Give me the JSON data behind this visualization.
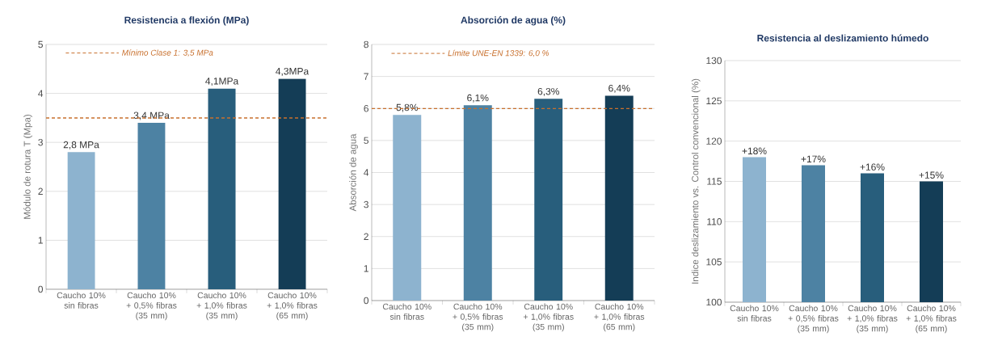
{
  "chart_data": [
    {
      "type": "bar",
      "title": "Resistencia a flexión (MPa)",
      "ylabel": "Módulo de rotura T (Mpa)",
      "categories": [
        "Caucho 10% sin fibras",
        "Caucho 10% + 0,5% fibras (35 mm)",
        "Caucho 10% + 1,0% fibras (35 mm)",
        "Caucho 10% + 1,0% fibras (65 mm)"
      ],
      "values": [
        2.8,
        3.4,
        4.1,
        4.3
      ],
      "colors": [
        "#8db3cf",
        "#4d82a3",
        "#285e7c",
        "#143d56"
      ],
      "value_labels": [
        "2,8 MPa",
        "3,4 MPa",
        "4,1MPa",
        "4,3MPa"
      ],
      "ylim": [
        0,
        5
      ],
      "yticks": [
        0,
        1,
        2,
        3,
        4,
        5
      ],
      "grid": "y",
      "ref_lines": [
        {
          "axis": "y",
          "value": 3.5,
          "label": "Mínimo Clase 1: 3,5 MPa",
          "color": "#c8702e",
          "line_style": "dashed"
        }
      ]
    },
    {
      "type": "bar",
      "title": "Absorción de agua (%)",
      "ylabel": "Absorción de agua",
      "categories": [
        "Caucho 10% sin fibras",
        "Caucho 10% + 0,5% fibras (35 mm)",
        "Caucho 10% + 1,0% fibras (35 mm)",
        "Caucho 10% + 1,0% fibras (65 mm)"
      ],
      "values": [
        5.8,
        6.1,
        6.3,
        6.4
      ],
      "colors": [
        "#8db3cf",
        "#4d82a3",
        "#285e7c",
        "#143d56"
      ],
      "value_labels": [
        "5,8%",
        "6,1%",
        "6,3%",
        "6,4%"
      ],
      "ylim": [
        0,
        8
      ],
      "yticks": [
        0,
        1,
        2,
        3,
        4,
        5,
        6,
        7,
        8
      ],
      "grid": "y",
      "ref_lines": [
        {
          "axis": "y",
          "value": 6.0,
          "label": "Límite UNE-EN 1339: 6,0 %",
          "color": "#c8702e",
          "line_style": "dashed"
        }
      ]
    },
    {
      "type": "bar",
      "title": "Resistencia al deslizamiento húmedo",
      "ylabel": "Indice deslizamiento vs. Control convencional (%)",
      "categories": [
        "Caucho 10% sin fibras",
        "Caucho 10% + 0,5% fibras (35 mm)",
        "Caucho 10% + 1,0% fibras (35 mm)",
        "Caucho 10% + 1,0% fibras (65 mm)"
      ],
      "values": [
        118,
        117,
        116,
        115
      ],
      "colors": [
        "#8db3cf",
        "#4d82a3",
        "#285e7c",
        "#143d56"
      ],
      "annotations": [
        {
          "text": "+18%",
          "x": "Caucho 10% sin fibras",
          "y": 118
        },
        {
          "text": "+17%",
          "x": "Caucho 10% + 0,5% fibras (35 mm)",
          "y": 117
        },
        {
          "text": "+16%",
          "x": "Caucho 10% + 1,0% fibras (35 mm)",
          "y": 116
        },
        {
          "text": "+15%",
          "x": "Caucho 10% + 1,0% fibras (65 mm)",
          "y": 115
        }
      ],
      "ylim": [
        100,
        130
      ],
      "yticks": [
        100,
        105,
        110,
        115,
        120,
        125,
        130
      ],
      "grid": "y"
    }
  ]
}
